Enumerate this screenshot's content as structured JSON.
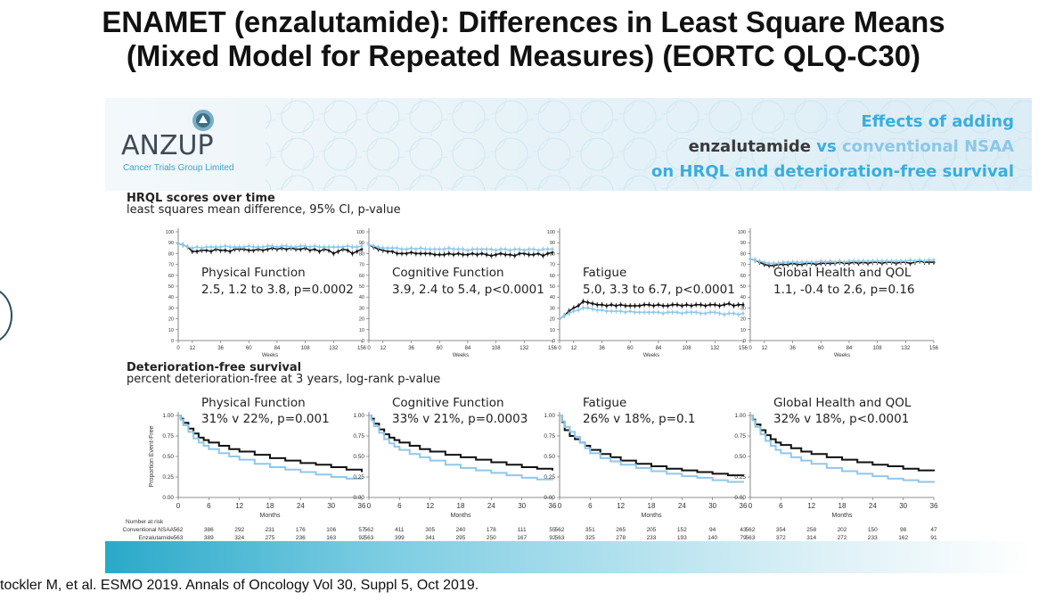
{
  "title": {
    "line1": "ENAMET (enzalutamide): Differences in Least Square Means",
    "line2": "(Mixed Model for Repeated Measures)  (EORTC QLQ-C30)"
  },
  "banner": {
    "logo_name": "ANZUP",
    "logo_sub": "Cancer Trials Group Limited",
    "effects_line1": "Effects of adding",
    "effects_enz": "enzalutamide",
    "effects_vs": " vs ",
    "effects_conv": "conventional NSAA",
    "effects_line3": "on HRQL and deterioration-free survival"
  },
  "hrql": {
    "title": "HRQL scores over time",
    "subtitle": "least squares mean difference, 95% CI, p-value"
  },
  "dfs": {
    "title": "Deterioration-free survival",
    "subtitle": "percent deterioration-free at 3 years, log-rank p-value"
  },
  "colors": {
    "enzalutamide": "#111111",
    "conventional": "#8ec8ea"
  },
  "chart_data": [
    {
      "type": "line",
      "name": "Physical Function",
      "stat": "2.5, 1.2 to 3.8, p=0.0002",
      "xlabel": "Weeks",
      "x": [
        0,
        4,
        8,
        12,
        16,
        20,
        24,
        28,
        32,
        36,
        40,
        44,
        48,
        52,
        56,
        60,
        64,
        68,
        72,
        76,
        80,
        84,
        88,
        92,
        96,
        100,
        104,
        108,
        112,
        116,
        120,
        124,
        128,
        132,
        136,
        140,
        144,
        148,
        152,
        156
      ],
      "xticks": [
        0,
        12,
        36,
        60,
        84,
        108,
        132,
        156
      ],
      "yticks": [
        0,
        10,
        20,
        30,
        40,
        50,
        60,
        70,
        80,
        90,
        100
      ],
      "ylim": [
        0,
        100
      ],
      "series": [
        {
          "name": "Enzalutamide",
          "values": [
            89,
            88,
            86,
            82,
            82,
            83,
            83,
            82,
            84,
            83,
            83,
            82,
            84,
            84,
            84,
            83,
            83,
            84,
            83,
            84,
            85,
            84,
            85,
            84,
            85,
            84,
            84,
            85,
            83,
            84,
            82,
            84,
            83,
            80,
            82,
            84,
            83,
            80,
            82,
            84
          ]
        },
        {
          "name": "Conventional NSAA",
          "values": [
            89,
            88,
            86,
            85,
            86,
            85,
            86,
            86,
            86,
            86,
            87,
            86,
            86,
            86,
            86,
            87,
            86,
            86,
            86,
            87,
            87,
            86,
            87,
            87,
            86,
            86,
            87,
            87,
            86,
            87,
            86,
            86,
            86,
            86,
            86,
            86,
            87,
            86,
            86,
            87
          ]
        }
      ]
    },
    {
      "type": "line",
      "name": "Cognitive Function",
      "stat": "3.9, 2.4 to 5.4, p<0.0001",
      "xlabel": "Weeks",
      "x": [
        0,
        4,
        8,
        12,
        16,
        20,
        24,
        28,
        32,
        36,
        40,
        44,
        48,
        52,
        56,
        60,
        64,
        68,
        72,
        76,
        80,
        84,
        88,
        92,
        96,
        100,
        104,
        108,
        112,
        116,
        120,
        124,
        128,
        132,
        136,
        140,
        144,
        148,
        152,
        156
      ],
      "xticks": [
        0,
        12,
        36,
        60,
        84,
        108,
        132,
        156
      ],
      "yticks": [
        0,
        10,
        20,
        30,
        40,
        50,
        60,
        70,
        80,
        90,
        100
      ],
      "ylim": [
        0,
        100
      ],
      "series": [
        {
          "name": "Enzalutamide",
          "values": [
            88,
            86,
            84,
            83,
            82,
            82,
            80,
            80,
            80,
            81,
            80,
            80,
            80,
            80,
            79,
            79,
            79,
            80,
            79,
            80,
            79,
            79,
            80,
            79,
            80,
            79,
            78,
            79,
            80,
            79,
            79,
            78,
            80,
            80,
            79,
            79,
            80,
            78,
            80,
            81
          ]
        },
        {
          "name": "Conventional NSAA",
          "values": [
            88,
            87,
            86,
            85,
            85,
            85,
            85,
            84,
            84,
            85,
            84,
            85,
            84,
            84,
            84,
            84,
            84,
            85,
            84,
            84,
            84,
            83,
            84,
            84,
            84,
            84,
            84,
            83,
            84,
            84,
            83,
            84,
            84,
            83,
            84,
            84,
            83,
            84,
            84,
            84
          ]
        }
      ]
    },
    {
      "type": "line",
      "name": "Fatigue",
      "stat": "5.0, 3.3 to 6.7, p<0.0001",
      "xlabel": "Weeks",
      "x": [
        0,
        4,
        8,
        12,
        16,
        20,
        24,
        28,
        32,
        36,
        40,
        44,
        48,
        52,
        56,
        60,
        64,
        68,
        72,
        76,
        80,
        84,
        88,
        92,
        96,
        100,
        104,
        108,
        112,
        116,
        120,
        124,
        128,
        132,
        136,
        140,
        144,
        148,
        152,
        156
      ],
      "xticks": [
        0,
        12,
        36,
        60,
        84,
        108,
        132,
        156
      ],
      "yticks": [
        0,
        10,
        20,
        30,
        40,
        50,
        60,
        70,
        80,
        90,
        100
      ],
      "ylim": [
        0,
        100
      ],
      "series": [
        {
          "name": "Enzalutamide",
          "values": [
            20,
            23,
            27,
            30,
            32,
            36,
            35,
            34,
            33,
            33,
            32,
            33,
            32,
            33,
            32,
            32,
            32,
            32,
            33,
            33,
            32,
            33,
            32,
            32,
            33,
            33,
            32,
            33,
            32,
            33,
            33,
            32,
            33,
            33,
            32,
            33,
            34,
            32,
            33,
            33
          ]
        },
        {
          "name": "Conventional NSAA",
          "values": [
            20,
            23,
            25,
            27,
            28,
            30,
            30,
            29,
            28,
            28,
            27,
            27,
            27,
            27,
            26,
            27,
            26,
            26,
            26,
            26,
            26,
            26,
            25,
            26,
            26,
            26,
            25,
            26,
            26,
            26,
            25,
            25,
            26,
            26,
            25,
            24,
            25,
            25,
            24,
            25
          ]
        }
      ]
    },
    {
      "type": "line",
      "name": "Global Health and QOL",
      "stat": "1.1, -0.4 to 2.6, p=0.16",
      "xlabel": "Weeks",
      "x": [
        0,
        4,
        8,
        12,
        16,
        20,
        24,
        28,
        32,
        36,
        40,
        44,
        48,
        52,
        56,
        60,
        64,
        68,
        72,
        76,
        80,
        84,
        88,
        92,
        96,
        100,
        104,
        108,
        112,
        116,
        120,
        124,
        128,
        132,
        136,
        140,
        144,
        148,
        152,
        156
      ],
      "xticks": [
        0,
        12,
        36,
        60,
        84,
        108,
        132,
        156
      ],
      "yticks": [
        0,
        10,
        20,
        30,
        40,
        50,
        60,
        70,
        80,
        90,
        100
      ],
      "ylim": [
        0,
        100
      ],
      "series": [
        {
          "name": "Enzalutamide",
          "values": [
            75,
            74,
            72,
            70,
            69,
            69,
            70,
            70,
            70,
            71,
            70,
            70,
            71,
            71,
            70,
            71,
            71,
            71,
            71,
            72,
            71,
            71,
            72,
            71,
            72,
            71,
            72,
            72,
            71,
            72,
            72,
            71,
            72,
            72,
            71,
            72,
            73,
            72,
            72,
            72
          ]
        },
        {
          "name": "Conventional NSAA",
          "values": [
            75,
            74,
            73,
            72,
            71,
            71,
            71,
            72,
            72,
            72,
            72,
            72,
            72,
            72,
            72,
            73,
            72,
            73,
            72,
            73,
            72,
            73,
            73,
            73,
            73,
            73,
            73,
            73,
            73,
            73,
            73,
            73,
            73,
            73,
            74,
            73,
            74,
            73,
            74,
            74
          ]
        }
      ]
    },
    {
      "type": "line",
      "name": "Physical Function",
      "stat": "31% v 22%, p=0.001",
      "xlabel": "Months",
      "ylabel": "Proportion Event-Free",
      "x": [
        0,
        0.5,
        1,
        2,
        3,
        4,
        5,
        6,
        8,
        10,
        12,
        15,
        18,
        21,
        24,
        27,
        30,
        33,
        36
      ],
      "xticks": [
        0,
        6,
        12,
        18,
        24,
        30,
        36
      ],
      "yticks": [
        "0.00",
        "0.25",
        "0.50",
        "0.75",
        "1.00"
      ],
      "ylim": [
        0,
        1
      ],
      "series": [
        {
          "name": "Enzalutamide",
          "values": [
            1.0,
            0.96,
            0.91,
            0.84,
            0.78,
            0.73,
            0.7,
            0.67,
            0.63,
            0.59,
            0.56,
            0.52,
            0.48,
            0.45,
            0.42,
            0.4,
            0.37,
            0.34,
            0.31
          ]
        },
        {
          "name": "Conventional NSAA",
          "values": [
            1.0,
            0.95,
            0.88,
            0.8,
            0.72,
            0.67,
            0.63,
            0.59,
            0.54,
            0.5,
            0.46,
            0.41,
            0.37,
            0.34,
            0.31,
            0.28,
            0.25,
            0.23,
            0.22
          ]
        }
      ],
      "risk_conventional": [
        "562",
        "386",
        "292",
        "231",
        "176",
        "106",
        "57"
      ],
      "risk_enzalutamide": [
        "563",
        "389",
        "324",
        "275",
        "236",
        "163",
        "92"
      ]
    },
    {
      "type": "line",
      "name": "Cognitive Function",
      "stat": "33% v 21%, p=0.0003",
      "xlabel": "Months",
      "x": [
        0,
        0.5,
        1,
        2,
        3,
        4,
        5,
        6,
        8,
        10,
        12,
        15,
        18,
        21,
        24,
        27,
        30,
        33,
        36
      ],
      "xticks": [
        0,
        6,
        12,
        18,
        24,
        30,
        36
      ],
      "yticks": [
        "0.00",
        "0.25",
        "0.50",
        "0.75",
        "1.00"
      ],
      "ylim": [
        0,
        1
      ],
      "series": [
        {
          "name": "Enzalutamide",
          "values": [
            1.0,
            0.96,
            0.9,
            0.83,
            0.77,
            0.73,
            0.7,
            0.67,
            0.63,
            0.59,
            0.56,
            0.52,
            0.49,
            0.46,
            0.43,
            0.4,
            0.37,
            0.35,
            0.33
          ]
        },
        {
          "name": "Conventional NSAA",
          "values": [
            1.0,
            0.94,
            0.87,
            0.79,
            0.71,
            0.66,
            0.62,
            0.58,
            0.53,
            0.49,
            0.45,
            0.4,
            0.36,
            0.33,
            0.3,
            0.27,
            0.24,
            0.22,
            0.21
          ]
        }
      ],
      "risk_conventional": [
        "562",
        "411",
        "305",
        "240",
        "178",
        "111",
        "55"
      ],
      "risk_enzalutamide": [
        "563",
        "399",
        "341",
        "295",
        "250",
        "167",
        "92"
      ]
    },
    {
      "type": "line",
      "name": "Fatigue",
      "stat": "26% v 18%, p=0.1",
      "xlabel": "Months",
      "x": [
        0,
        0.5,
        1,
        2,
        3,
        4,
        5,
        6,
        8,
        10,
        12,
        15,
        18,
        21,
        24,
        27,
        30,
        33,
        36
      ],
      "xticks": [
        0,
        6,
        12,
        18,
        24,
        30,
        36
      ],
      "yticks": [
        "0.00",
        "0.25",
        "0.50",
        "0.75",
        "1.00"
      ],
      "ylim": [
        0,
        1
      ],
      "series": [
        {
          "name": "Enzalutamide",
          "values": [
            1.0,
            0.92,
            0.82,
            0.75,
            0.71,
            0.67,
            0.63,
            0.58,
            0.53,
            0.49,
            0.45,
            0.41,
            0.38,
            0.35,
            0.33,
            0.31,
            0.29,
            0.27,
            0.26
          ]
        },
        {
          "name": "Conventional NSAA",
          "values": [
            1.0,
            0.93,
            0.86,
            0.8,
            0.74,
            0.67,
            0.6,
            0.54,
            0.48,
            0.44,
            0.4,
            0.36,
            0.32,
            0.29,
            0.26,
            0.24,
            0.21,
            0.19,
            0.18
          ]
        }
      ],
      "risk_conventional": [
        "562",
        "351",
        "265",
        "205",
        "152",
        "94",
        "43"
      ],
      "risk_enzalutamide": [
        "563",
        "325",
        "278",
        "233",
        "193",
        "140",
        "79"
      ]
    },
    {
      "type": "line",
      "name": "Global Health and QOL",
      "stat": "32% v 18%, p<0.0001",
      "xlabel": "Months",
      "x": [
        0,
        0.5,
        1,
        2,
        3,
        4,
        5,
        6,
        8,
        10,
        12,
        15,
        18,
        21,
        24,
        27,
        30,
        33,
        36
      ],
      "xticks": [
        0,
        6,
        12,
        18,
        24,
        30,
        36
      ],
      "yticks": [
        "0.00",
        "0.25",
        "0.50",
        "0.75",
        "1.00"
      ],
      "ylim": [
        0,
        1
      ],
      "series": [
        {
          "name": "Enzalutamide",
          "values": [
            1.0,
            0.95,
            0.89,
            0.82,
            0.76,
            0.71,
            0.67,
            0.64,
            0.6,
            0.56,
            0.53,
            0.49,
            0.46,
            0.43,
            0.4,
            0.38,
            0.35,
            0.33,
            0.32
          ]
        },
        {
          "name": "Conventional NSAA",
          "values": [
            1.0,
            0.94,
            0.86,
            0.77,
            0.69,
            0.63,
            0.58,
            0.54,
            0.49,
            0.45,
            0.41,
            0.36,
            0.32,
            0.29,
            0.26,
            0.23,
            0.21,
            0.19,
            0.18
          ]
        }
      ],
      "risk_conventional": [
        "562",
        "354",
        "258",
        "202",
        "150",
        "98",
        "47"
      ],
      "risk_enzalutamide": [
        "563",
        "372",
        "314",
        "272",
        "233",
        "162",
        "91"
      ]
    }
  ],
  "risk_table": {
    "header": "Number at risk",
    "conventional_label": "Conventional NSAA",
    "enzalutamide_label": "Enzalutamide"
  },
  "citation": "tockler M, et al. ESMO 2019. Annals of Oncology Vol 30, Suppl 5, Oct 2019."
}
